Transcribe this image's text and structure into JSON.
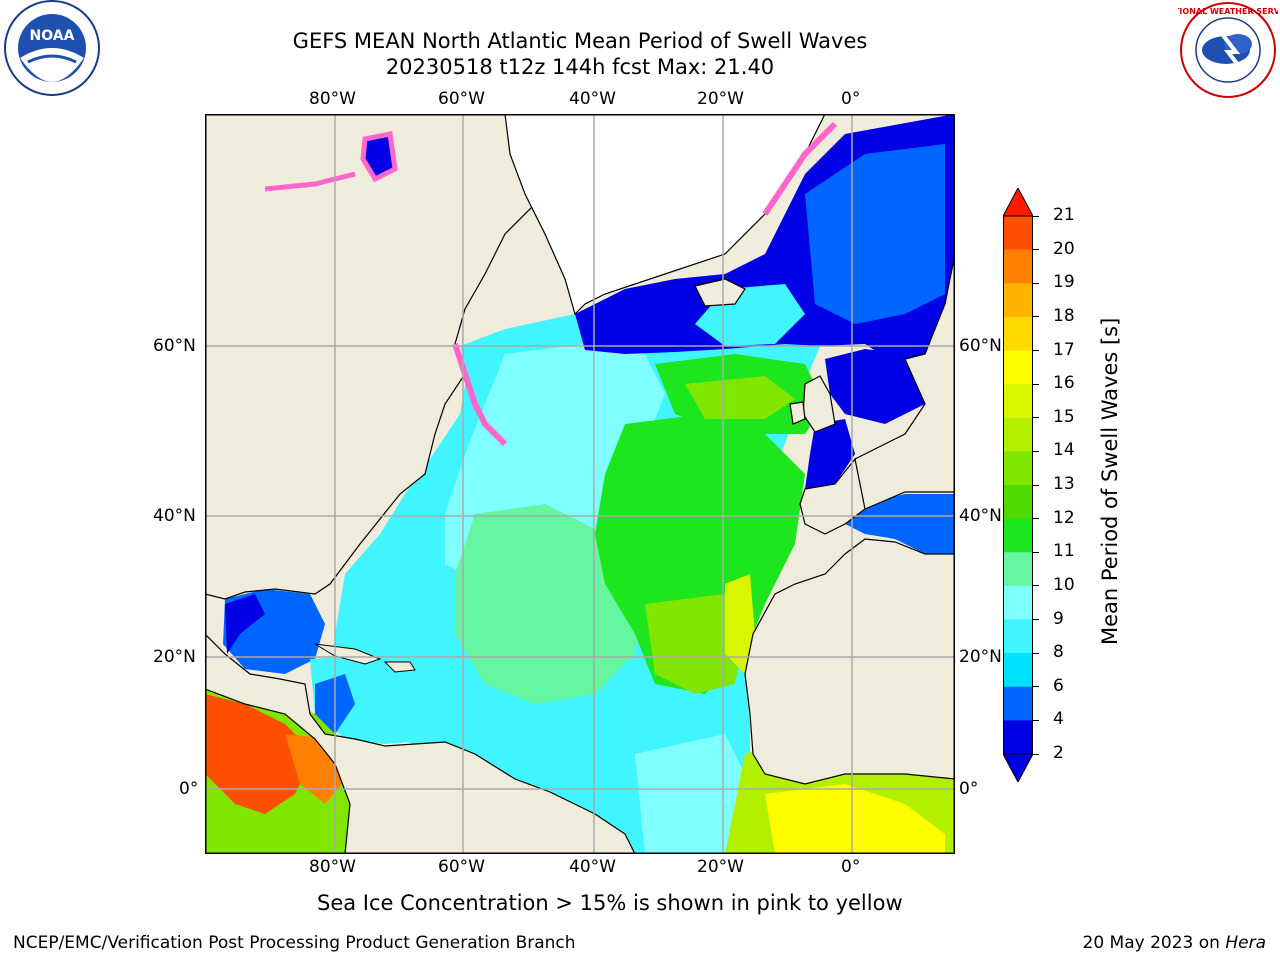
{
  "header": {
    "title_line1": "GEFS MEAN North Atlantic Mean Period of Swell Waves",
    "title_line2": "20230518 t12z 144h fcst   Max: 21.40"
  },
  "logos": {
    "noaa_text": "NOAA",
    "nws_text": "NATIONAL WEATHER SERVICE"
  },
  "axes": {
    "lon_labels": [
      "80°W",
      "60°W",
      "40°W",
      "20°W",
      "0°"
    ],
    "lat_labels": [
      "60°N",
      "40°N",
      "20°N",
      "0°"
    ]
  },
  "colorbar": {
    "label": "Mean Period of Swell Waves [s]",
    "ticks": [
      "21",
      "20",
      "19",
      "18",
      "17",
      "16",
      "15",
      "14",
      "13",
      "12",
      "11",
      "10",
      "9",
      "8",
      "6",
      "4",
      "2"
    ],
    "colors": [
      "#ff1a00",
      "#ff4f00",
      "#ff8000",
      "#ffb300",
      "#ffd900",
      "#ffff00",
      "#d9f500",
      "#b3f000",
      "#80e600",
      "#4ddb00",
      "#1ee61e",
      "#66f5a0",
      "#80ffff",
      "#40f5ff",
      "#00e0ff",
      "#0066ff",
      "#0000e6"
    ]
  },
  "colors": {
    "land": "#efecdc",
    "ice_white": "#ffffff",
    "grid": "#aaaaaa",
    "swell_low": "#0000e6",
    "swell_cyan": "#40f5ff",
    "swell_lightcyan": "#80ffff",
    "swell_green": "#1ee61e",
    "swell_yellowgreen": "#b3f000",
    "swell_high": "#ff4f00",
    "ice_pink": "#ff66cc"
  },
  "caption": "Sea Ice Concentration > 15% is shown in pink to yellow",
  "footer": {
    "left": "NCEP/EMC/Verification Post Processing Product Generation Branch",
    "right_prefix": "20 May 2023 on ",
    "right_host": "Hera"
  }
}
